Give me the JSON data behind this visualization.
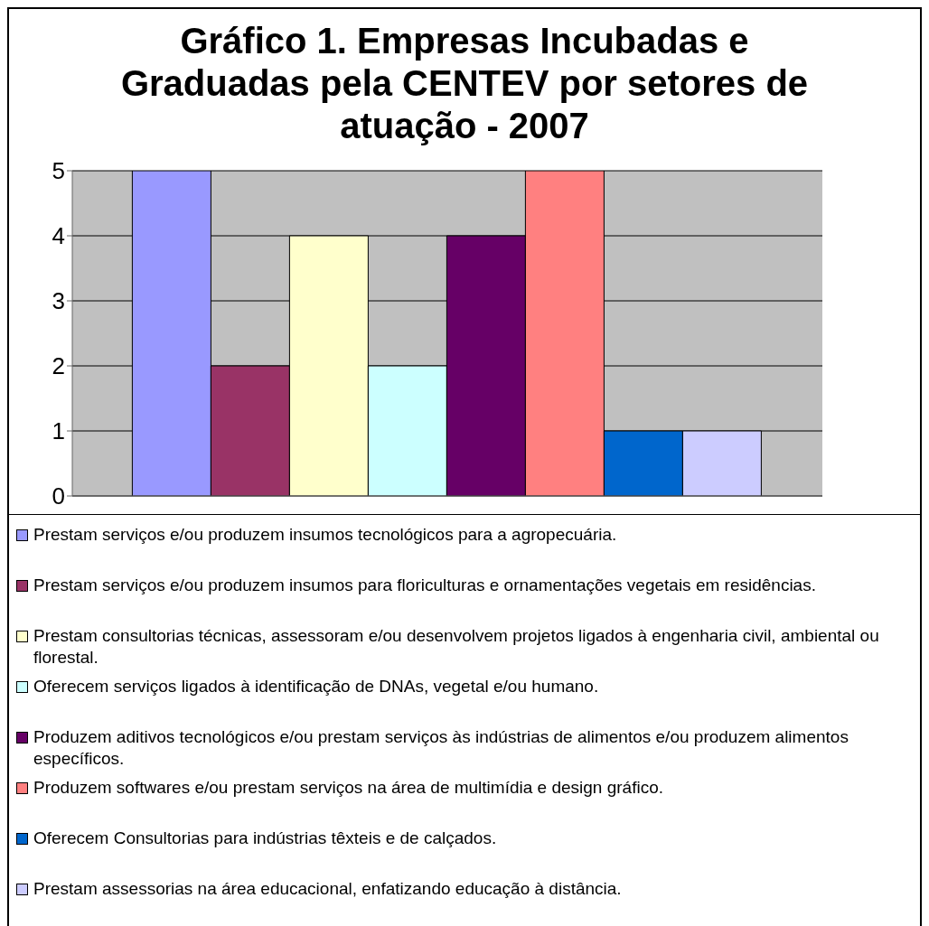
{
  "chart_data": {
    "type": "bar",
    "title": "Gráfico 1. Empresas Incubadas e Graduadas pela CENTEV por setores de atuação - 2007",
    "categories": [
      null
    ],
    "ylim": [
      0,
      5
    ],
    "yticks": [
      0,
      1,
      2,
      3,
      4,
      5
    ],
    "grid": "y",
    "legend": "bottom",
    "series": [
      {
        "name": "Prestam serviços e/ou produzem insumos tecnológicos para a agropecuária.",
        "color": "#9999ff",
        "values": [
          5
        ]
      },
      {
        "name": "Prestam serviços e/ou produzem insumos para floriculturas e ornamentações vegetais em residências.",
        "color": "#993366",
        "values": [
          2
        ]
      },
      {
        "name": "Prestam consultorias técnicas, assessoram e/ou desenvolvem projetos ligados à engenharia civil, ambiental ou florestal.",
        "color": "#ffffcc",
        "values": [
          4
        ]
      },
      {
        "name": "Oferecem serviços ligados à identificação de DNAs, vegetal e/ou humano.",
        "color": "#ccffff",
        "values": [
          2
        ]
      },
      {
        "name": "Produzem aditivos tecnológicos e/ou prestam serviços às indústrias de alimentos e/ou produzem alimentos específicos.",
        "color": "#660066",
        "values": [
          4
        ]
      },
      {
        "name": "Produzem softwares e/ou prestam serviços na área de multimídia e design gráfico.",
        "color": "#ff8080",
        "values": [
          5
        ]
      },
      {
        "name": "Oferecem Consultorias para indústrias têxteis e de calçados.",
        "color": "#0066cc",
        "values": [
          1
        ]
      },
      {
        "name": "Prestam assessorias na área educacional, enfatizando educação à distância.",
        "color": "#ccccff",
        "values": [
          1
        ]
      }
    ]
  }
}
